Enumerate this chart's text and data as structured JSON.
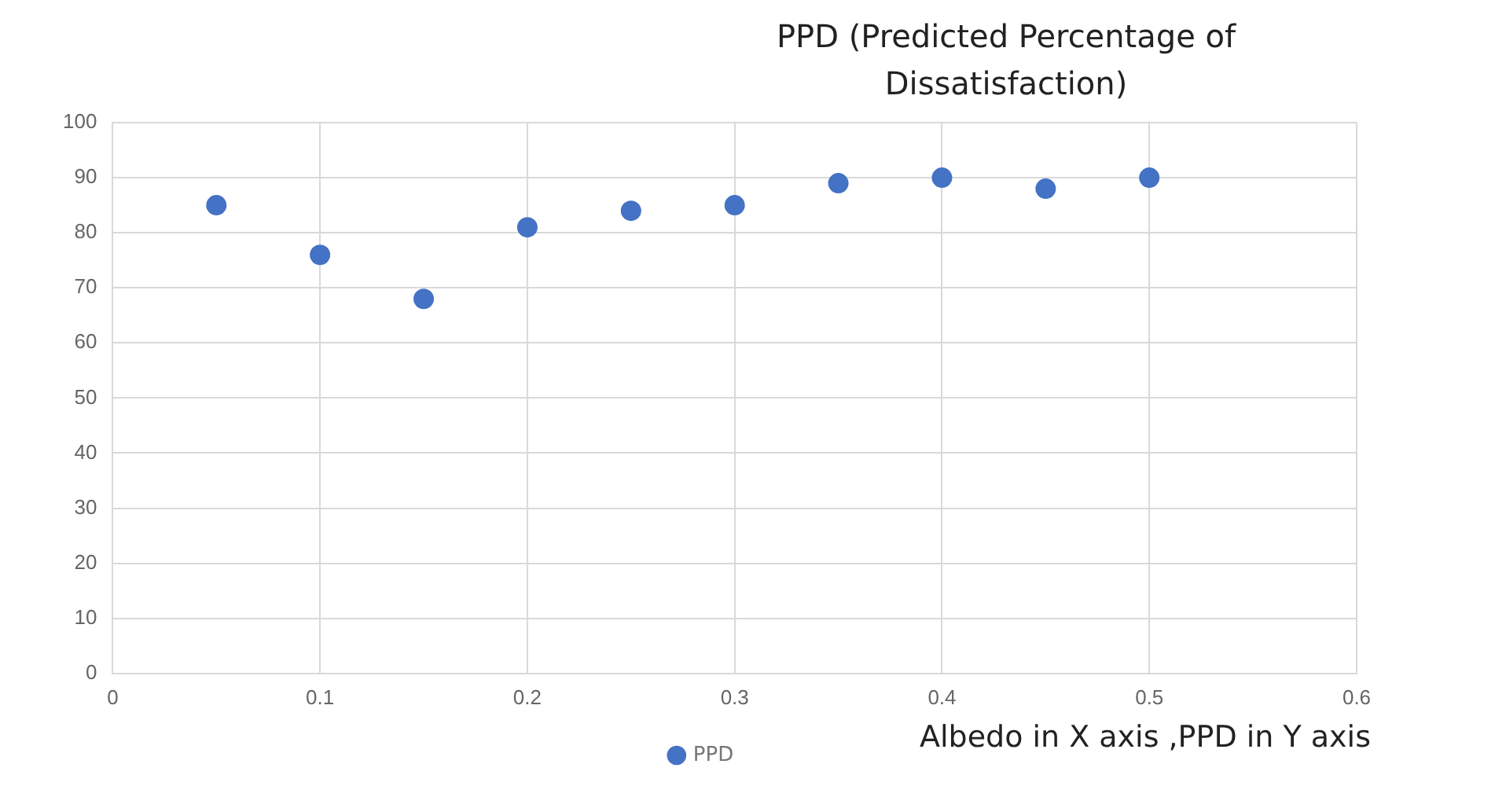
{
  "chart_data": {
    "type": "scatter",
    "title": "PPD (Predicted Percentage of Dissatisfaction)",
    "x": [
      0.05,
      0.1,
      0.15,
      0.2,
      0.25,
      0.3,
      0.35,
      0.4,
      0.45,
      0.5
    ],
    "series": [
      {
        "name": "PPD",
        "color": "#4472c4",
        "values": [
          85,
          76,
          68,
          81,
          84,
          85,
          89,
          90,
          88,
          90
        ]
      }
    ],
    "xlim": [
      0,
      0.6
    ],
    "xticks": [
      0,
      0.1,
      0.2,
      0.3,
      0.4,
      0.5,
      0.6
    ],
    "ylim": [
      0,
      100
    ],
    "yticks": [
      0,
      10,
      20,
      30,
      40,
      50,
      60,
      70,
      80,
      90,
      100
    ],
    "grid": true,
    "legend": "bottom",
    "marker": "circle",
    "annotations": [
      "Albedo in X axis ,PPD in Y axis"
    ]
  }
}
